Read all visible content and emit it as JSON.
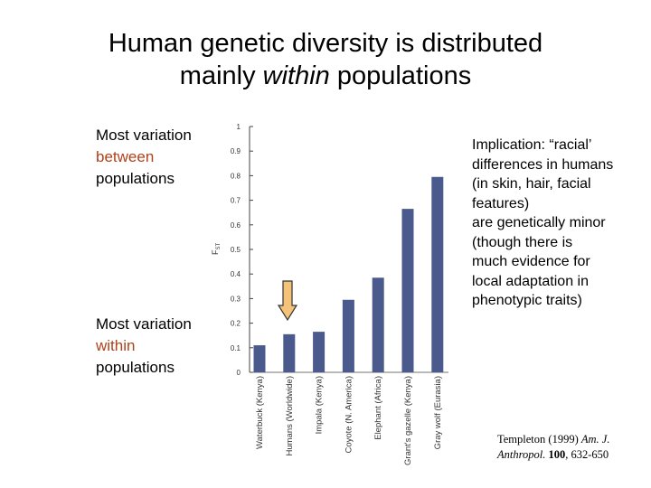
{
  "title": {
    "line1": "Human genetic diversity is distributed",
    "line2_pre": "mainly ",
    "line2_em": "within",
    "line2_post": " populations"
  },
  "labels": {
    "between": {
      "line1": "Most variation",
      "accent": "between",
      "line3": "populations"
    },
    "within": {
      "line1": "Most variation",
      "accent": "within",
      "line3": "populations"
    },
    "accent_color": "#b0401a"
  },
  "implication": [
    "Implication: “racial’",
    "differences in humans",
    "(in skin, hair, facial",
    "features)",
    "are genetically minor",
    "(though there is",
    "much evidence for",
    "local adaptation in",
    "phenotypic traits)"
  ],
  "citation": {
    "author": "Templeton (1999) ",
    "journal1": "Am. J.",
    "journal2": "Anthropol.",
    "volume": "100",
    "pages": ", 632-650"
  },
  "arrow": {
    "icon": "down-arrow-icon",
    "color": "#f5c27a",
    "stroke": "#333333",
    "points_to": "Humans (Worldwide)"
  },
  "chart_data": {
    "type": "bar",
    "ylabel": "F_ST",
    "ylim": [
      0,
      1
    ],
    "yticks": [
      "0",
      "0.1",
      "0.2",
      "0.3",
      "0.4",
      "0.5",
      "0.6",
      "0.7",
      "0.8",
      "0.9",
      "1"
    ],
    "categories": [
      "Waterbuck (Kenya)",
      "Humans (Worldwide)",
      "Impala (Kenya)",
      "Coyote (N. America)",
      "Elephant (Africa)",
      "Grant's gazelle (Kenya)",
      "Gray wolf (Eurasia)"
    ],
    "values": [
      0.11,
      0.155,
      0.165,
      0.295,
      0.385,
      0.665,
      0.795
    ],
    "bar_color": "#4a5a8c",
    "grid": false
  }
}
